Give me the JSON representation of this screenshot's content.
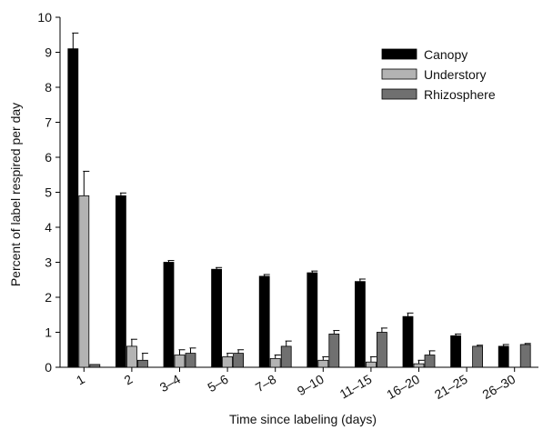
{
  "chart_data": {
    "type": "bar",
    "xlabel": "Time  since labeling  (days)",
    "ylabel": "Percent of label respired per day",
    "ylim": [
      0,
      10
    ],
    "yticks": [
      "0",
      "1",
      "2",
      "3",
      "4",
      "5",
      "6",
      "7",
      "8",
      "9",
      "10"
    ],
    "grid": false,
    "legend_position": "top-right",
    "categories": [
      "1",
      "2",
      "3–4",
      "5–6",
      "7–8",
      "9–10",
      "11–15",
      "16–20",
      "21–25",
      "26–30"
    ],
    "series": [
      {
        "name": "Canopy",
        "color": "#000000",
        "values": [
          9.1,
          4.9,
          3.0,
          2.8,
          2.6,
          2.7,
          2.45,
          1.45,
          0.9,
          0.6
        ],
        "errors": [
          0.45,
          0.08,
          0.05,
          0.05,
          0.05,
          0.05,
          0.07,
          0.1,
          0.05,
          0.05
        ]
      },
      {
        "name": "Understory",
        "color": "#b3b3b3",
        "values": [
          4.9,
          0.6,
          0.35,
          0.3,
          0.25,
          0.2,
          0.15,
          0.1,
          null,
          null
        ],
        "errors": [
          0.7,
          0.2,
          0.15,
          0.1,
          0.1,
          0.1,
          0.15,
          0.1,
          null,
          null
        ]
      },
      {
        "name": "Rhizosphere",
        "color": "#707070",
        "values": [
          0.08,
          0.2,
          0.4,
          0.4,
          0.6,
          0.95,
          1.0,
          0.35,
          0.6,
          0.65
        ],
        "errors": [
          0.0,
          0.2,
          0.15,
          0.1,
          0.15,
          0.1,
          0.12,
          0.12,
          0.03,
          0.03
        ]
      }
    ]
  }
}
